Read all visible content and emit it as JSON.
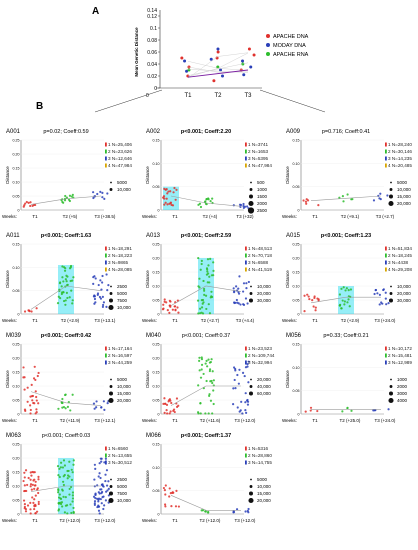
{
  "panel_labels": {
    "a": "A",
    "b": "B"
  },
  "colors": {
    "apache_dna": "#e0312d",
    "moday_dna": "#2a3fb8",
    "apache_rna": "#2dbd2d",
    "cyan": "#40e0f0",
    "gray_line": "#9a9a9a",
    "fit_line": "#7b1fa2"
  },
  "chart_data": [
    {
      "id": "A",
      "type": "scatter",
      "title": "",
      "xlabel": "",
      "ylabel": "Mean Genetic Distance",
      "categories": [
        "T1",
        "T2",
        "T3"
      ],
      "ylim": [
        0,
        0.12
      ],
      "yticks": [
        "0",
        "0.02",
        "0.04",
        "0.06",
        "0.08",
        "0.1",
        "0.12"
      ],
      "yticks_top_extra": "0.14",
      "legend": [
        "APACHE DNA",
        "MODAY DNA",
        "APACHE RNA"
      ],
      "legend_position": "right",
      "series": [
        {
          "name": "APACHE DNA",
          "color": "#e0312d",
          "points": [
            [
              1,
              0.02
            ],
            [
              1,
              0.035
            ],
            [
              1,
              0.05
            ],
            [
              2,
              0.012
            ],
            [
              2,
              0.05
            ],
            [
              2,
              0.06
            ],
            [
              3,
              0.03
            ],
            [
              3,
              0.055
            ],
            [
              3,
              0.065
            ]
          ]
        },
        {
          "name": "MODAY DNA",
          "color": "#2a3fb8",
          "points": [
            [
              1,
              0.028
            ],
            [
              1,
              0.045
            ],
            [
              2,
              0.02
            ],
            [
              2,
              0.03
            ],
            [
              2,
              0.048
            ],
            [
              2,
              0.065
            ],
            [
              3,
              0.022
            ],
            [
              3,
              0.035
            ],
            [
              3,
              0.045
            ]
          ]
        },
        {
          "name": "APACHE RNA",
          "color": "#2dbd2d",
          "points": [
            [
              1,
              0.03
            ],
            [
              2,
              0.035
            ],
            [
              3,
              0.04
            ]
          ]
        }
      ],
      "fit_line": [
        [
          1,
          0.018
        ],
        [
          3,
          0.03
        ]
      ]
    },
    {
      "id": "A001",
      "type": "scatter",
      "stats": "p=0.02; Coeff:0.59",
      "stats_bold": false,
      "ylim": [
        0,
        0.25
      ],
      "yticks": [
        "0",
        "0.05",
        "0.10",
        "0.15",
        "0.20",
        "0.25"
      ],
      "ylabel": "Distance",
      "xprefix": "Weeks:",
      "xticks": [
        "T1",
        "T2 (+5)",
        "T3 (+38.5)"
      ],
      "legend": [
        "1 N=25,406",
        "2 N=23,626",
        "3 N=12,646",
        "4 N=47,984"
      ],
      "sizes": [
        "5000",
        "10,000"
      ],
      "clusters": [
        {
          "x": 1,
          "color": "#e0312d",
          "level": 0.02,
          "count": 10,
          "spread": 0.02
        },
        {
          "x": 2,
          "color": "#2dbd2d",
          "level": 0.04,
          "count": 14,
          "spread": 0.03
        },
        {
          "x": 3,
          "color": "#2a3fb8",
          "level": 0.05,
          "count": 10,
          "spread": 0.03
        }
      ]
    },
    {
      "id": "A002",
      "type": "scatter",
      "stats": "p<0.001; Coeff:2.20",
      "stats_bold": true,
      "ylim": [
        0,
        0.15
      ],
      "yticks": [
        "0",
        "0.05",
        "0.10",
        "0.15"
      ],
      "ylabel": "Distance",
      "xprefix": "Weeks:",
      "xticks": [
        "T1",
        "T2 (+4)",
        "T3 (+32)"
      ],
      "legend": [
        "1 N=3741",
        "2 N=1653",
        "3 N=5395",
        "4 N=47,984"
      ],
      "sizes": [
        "500",
        "1000",
        "1500",
        "2000",
        "2500"
      ],
      "clusters": [
        {
          "x": 1,
          "color": "#e0312d",
          "level": 0.03,
          "count": 22,
          "spread": 0.04,
          "band": true
        },
        {
          "x": 2,
          "color": "#2dbd2d",
          "level": 0.015,
          "count": 14,
          "spread": 0.02
        },
        {
          "x": 3,
          "color": "#2a3fb8",
          "level": 0.008,
          "count": 10,
          "spread": 0.01
        }
      ]
    },
    {
      "id": "A009",
      "type": "scatter",
      "stats": "p=0.716; Coeff:0.41",
      "stats_bold": false,
      "ylim": [
        0,
        0.15
      ],
      "yticks": [
        "0",
        "0.05",
        "0.10",
        "0.15"
      ],
      "ylabel": "Distance",
      "xprefix": "Weeks:",
      "xticks": [
        "T1",
        "T2 (+9.1)",
        "T3 (+2.7)"
      ],
      "legend": [
        "1 N=28,240",
        "2 N=30,146",
        "3 N=14,235",
        "4 N=20,485"
      ],
      "sizes": [
        "5000",
        "10,000",
        "15,000",
        "20,000"
      ],
      "clusters": [
        {
          "x": 1,
          "color": "#e0312d",
          "level": 0.02,
          "count": 6,
          "spread": 0.02
        },
        {
          "x": 2,
          "color": "#2dbd2d",
          "level": 0.025,
          "count": 6,
          "spread": 0.02
        },
        {
          "x": 3,
          "color": "#2a3fb8",
          "level": 0.03,
          "count": 6,
          "spread": 0.02
        }
      ]
    },
    {
      "id": "A011",
      "type": "scatter",
      "stats": "p<0.001; Coeff:1.63",
      "stats_bold": true,
      "ylim": [
        0,
        0.15
      ],
      "yticks": [
        "0",
        "0.05",
        "0.10",
        "0.15"
      ],
      "ylabel": "Distance",
      "xprefix": "Weeks:",
      "xticks": [
        "T1",
        "T2 (+2.9)",
        "T3 (+13.1)"
      ],
      "legend": [
        "1 N=18,291",
        "2 N=18,223",
        "3 N=9865",
        "4 N=28,085"
      ],
      "sizes": [
        "2500",
        "5000",
        "7500",
        "10,000"
      ],
      "clusters": [
        {
          "x": 1,
          "color": "#e0312d",
          "level": 0.01,
          "count": 6,
          "spread": 0.01
        },
        {
          "x": 2,
          "color": "#2dbd2d",
          "level": 0.06,
          "count": 40,
          "spread": 0.09,
          "band": true
        },
        {
          "x": 3,
          "color": "#2a3fb8",
          "level": 0.05,
          "count": 28,
          "spread": 0.07
        }
      ]
    },
    {
      "id": "A013",
      "type": "scatter",
      "stats": "p<0.001; Coeff:2.59",
      "stats_bold": true,
      "ylim": [
        0,
        0.25
      ],
      "yticks": [
        "0",
        "0.05",
        "0.10",
        "0.15",
        "0.20",
        "0.25"
      ],
      "ylabel": "Distance",
      "xprefix": "Weeks:",
      "xticks": [
        "T1",
        "T2 (+2.7)",
        "T3 (+4.4)"
      ],
      "legend": [
        "1 N=48,513",
        "2 N=70,718",
        "3 N=6588",
        "4 N=41,519"
      ],
      "sizes": [
        "10,000",
        "20,000",
        "30,000"
      ],
      "clusters": [
        {
          "x": 1,
          "color": "#e0312d",
          "level": 0.03,
          "count": 22,
          "spread": 0.06
        },
        {
          "x": 2,
          "color": "#2dbd2d",
          "level": 0.1,
          "count": 45,
          "spread": 0.2,
          "band": true
        },
        {
          "x": 3,
          "color": "#2a3fb8",
          "level": 0.08,
          "count": 25,
          "spread": 0.12
        }
      ]
    },
    {
      "id": "A015",
      "type": "scatter",
      "stats": "p<0.001; Coeff:1.23",
      "stats_bold": true,
      "ylim": [
        0,
        0.25
      ],
      "yticks": [
        "0",
        "0.05",
        "0.10",
        "0.15",
        "0.20",
        "0.25"
      ],
      "ylabel": "Distance",
      "xprefix": "Weeks:",
      "xticks": [
        "T1",
        "T2 (+2.9)",
        "T3 (+24.0)"
      ],
      "legend": [
        "1 N=51,834",
        "2 N=18,245",
        "3 N=4438",
        "4 N=29,208"
      ],
      "sizes": [
        "10,000",
        "20,000",
        "30,000"
      ],
      "clusters": [
        {
          "x": 1,
          "color": "#e0312d",
          "level": 0.04,
          "count": 14,
          "spread": 0.06
        },
        {
          "x": 2,
          "color": "#2dbd2d",
          "level": 0.06,
          "count": 20,
          "spread": 0.08,
          "band": true
        },
        {
          "x": 3,
          "color": "#2a3fb8",
          "level": 0.06,
          "count": 14,
          "spread": 0.06
        }
      ]
    },
    {
      "id": "M039",
      "type": "scatter",
      "stats": "p<0.001; Coeff:0.42",
      "stats_bold": true,
      "ylim": [
        0,
        0.25
      ],
      "yticks": [
        "0",
        "0.05",
        "0.10",
        "0.15",
        "0.20",
        "0.25"
      ],
      "ylabel": "Distance",
      "xprefix": "Weeks:",
      "xticks": [
        "T1",
        "T2 (+11.9)",
        "T3 (+12.1)"
      ],
      "legend": [
        "1 N=17,164",
        "2 N=16,597",
        "3 N=44,259"
      ],
      "sizes": [
        "5000",
        "10,000",
        "15,000",
        "20,000"
      ],
      "clusters": [
        {
          "x": 1,
          "color": "#e0312d",
          "level": 0.08,
          "count": 30,
          "spread": 0.2
        },
        {
          "x": 2,
          "color": "#2dbd2d",
          "level": 0.04,
          "count": 14,
          "spread": 0.06
        },
        {
          "x": 3,
          "color": "#2a3fb8",
          "level": 0.03,
          "count": 10,
          "spread": 0.04
        }
      ]
    },
    {
      "id": "M040",
      "type": "scatter",
      "stats": "p<0.001; Coeff:0.37",
      "stats_bold": false,
      "ylim": [
        0,
        0.25
      ],
      "yticks": [
        "0",
        "0.05",
        "0.10",
        "0.15",
        "0.20",
        "0.25"
      ],
      "ylabel": "Distance",
      "xprefix": "Weeks:",
      "xticks": [
        "T1",
        "T2 (+11.6)",
        "T3 (+12.0)"
      ],
      "legend": [
        "1 N=23,523",
        "2 N=109,744",
        "3 N=32,994"
      ],
      "sizes": [
        "20,000",
        "40,000",
        "60,000"
      ],
      "clusters": [
        {
          "x": 1,
          "color": "#e0312d",
          "level": 0.03,
          "count": 22,
          "spread": 0.06
        },
        {
          "x": 2,
          "color": "#2dbd2d",
          "level": 0.1,
          "count": 40,
          "spread": 0.22
        },
        {
          "x": 3,
          "color": "#2a3fb8",
          "level": 0.1,
          "count": 30,
          "spread": 0.22
        }
      ]
    },
    {
      "id": "M056",
      "type": "scatter",
      "stats": "p=0.33; Coeff:0.21",
      "stats_bold": false,
      "ylim": [
        0,
        0.15
      ],
      "yticks": [
        "0",
        "0.05",
        "0.10",
        "0.15"
      ],
      "ylabel": "Distance",
      "xprefix": "Weeks:",
      "xticks": [
        "T1",
        "T2 (+25.0)",
        "T3 (+24.0)"
      ],
      "legend": [
        "1 N=10,172",
        "2 N=15,481",
        "3 N=12,989"
      ],
      "sizes": [
        "1000",
        "2000",
        "3000",
        "4000"
      ],
      "clusters": [
        {
          "x": 1,
          "color": "#e0312d",
          "level": 0.01,
          "count": 4,
          "spread": 0.01
        },
        {
          "x": 2,
          "color": "#2dbd2d",
          "level": 0.01,
          "count": 4,
          "spread": 0.01
        },
        {
          "x": 3,
          "color": "#2a3fb8",
          "level": 0.01,
          "count": 4,
          "spread": 0.01
        }
      ]
    },
    {
      "id": "M063",
      "type": "scatter",
      "stats": "p<0.001; Coeff:0.03",
      "stats_bold": false,
      "ylim": [
        0,
        0.25
      ],
      "yticks": [
        "0",
        "0.05",
        "0.10",
        "0.15",
        "0.20",
        "0.25"
      ],
      "ylabel": "Distance",
      "xprefix": "Weeks:",
      "xticks": [
        "T1",
        "T2 (+12.0)",
        "T3 (+12.0)"
      ],
      "legend": [
        "1 N=6560",
        "2 N=13,655",
        "3 N=30,512"
      ],
      "sizes": [
        "2500",
        "5000",
        "7500",
        "10,000"
      ],
      "clusters": [
        {
          "x": 1,
          "color": "#e0312d",
          "level": 0.08,
          "count": 55,
          "spread": 0.16
        },
        {
          "x": 2,
          "color": "#2dbd2d",
          "level": 0.1,
          "count": 60,
          "spread": 0.2,
          "band": true
        },
        {
          "x": 3,
          "color": "#2a3fb8",
          "level": 0.1,
          "count": 60,
          "spread": 0.2
        }
      ]
    },
    {
      "id": "M066",
      "type": "scatter",
      "stats": "p<0.001; Coeff:1.37",
      "stats_bold": true,
      "ylim": [
        0,
        0.15
      ],
      "yticks": [
        "0",
        "0.05",
        "0.10",
        "0.15"
      ],
      "ylabel": "Distance",
      "xprefix": "Weeks:",
      "xticks": [
        "T1",
        "T2 (+12.0)",
        "T3 (+12.0)"
      ],
      "legend": [
        "1 N=5316",
        "2 N=28,860",
        "3 N=14,755"
      ],
      "sizes": [
        "5000",
        "10,000",
        "15,000",
        "20,000"
      ],
      "clusters": [
        {
          "x": 1,
          "color": "#e0312d",
          "level": 0.04,
          "count": 16,
          "spread": 0.05
        },
        {
          "x": 2,
          "color": "#2dbd2d",
          "level": 0.008,
          "count": 6,
          "spread": 0.01
        },
        {
          "x": 3,
          "color": "#2a3fb8",
          "level": 0.008,
          "count": 8,
          "spread": 0.01
        }
      ]
    }
  ]
}
